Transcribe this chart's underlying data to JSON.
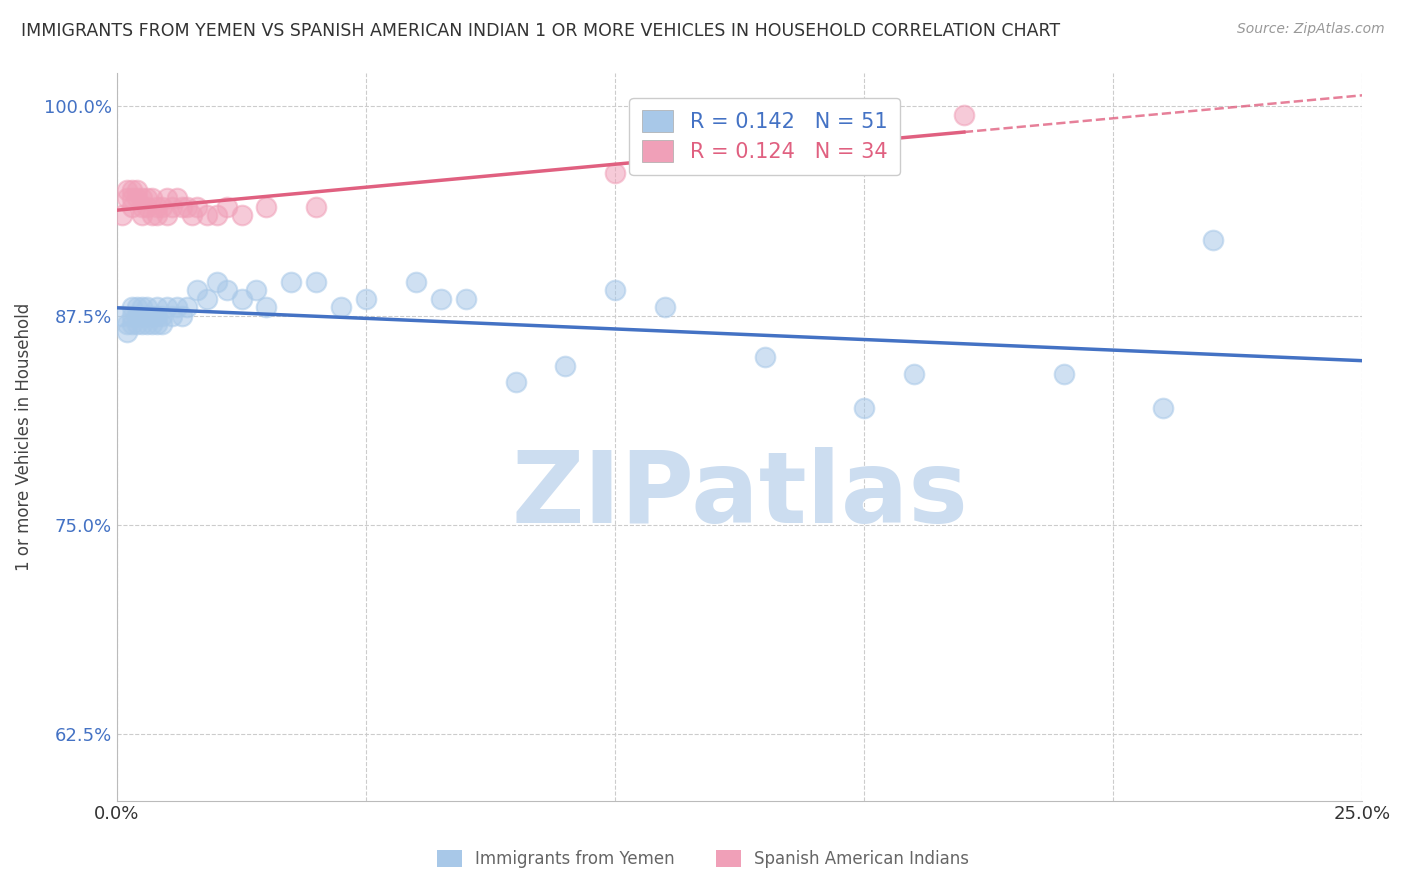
{
  "title": "IMMIGRANTS FROM YEMEN VS SPANISH AMERICAN INDIAN 1 OR MORE VEHICLES IN HOUSEHOLD CORRELATION CHART",
  "source": "Source: ZipAtlas.com",
  "ylabel": "1 or more Vehicles in Household",
  "xlabel_blue": "Immigrants from Yemen",
  "xlabel_pink": "Spanish American Indians",
  "xlim": [
    0.0,
    0.25
  ],
  "ylim": [
    0.585,
    1.02
  ],
  "xticks": [
    0.0,
    0.05,
    0.1,
    0.15,
    0.2,
    0.25
  ],
  "xtick_labels": [
    "0.0%",
    "",
    "",
    "",
    "",
    "25.0%"
  ],
  "yticks": [
    0.625,
    0.75,
    0.875,
    1.0
  ],
  "ytick_labels": [
    "62.5%",
    "75.0%",
    "87.5%",
    "100.0%"
  ],
  "blue_R": 0.142,
  "blue_N": 51,
  "pink_R": 0.124,
  "pink_N": 34,
  "blue_color": "#a8c8e8",
  "pink_color": "#f0a0b8",
  "blue_line_color": "#4472c4",
  "pink_line_color": "#e06080",
  "background_color": "#ffffff",
  "watermark_text": "ZIPatlas",
  "watermark_color": "#ccddf0",
  "blue_x": [
    0.001,
    0.002,
    0.002,
    0.003,
    0.003,
    0.003,
    0.004,
    0.004,
    0.004,
    0.005,
    0.005,
    0.005,
    0.006,
    0.006,
    0.006,
    0.007,
    0.007,
    0.008,
    0.008,
    0.008,
    0.009,
    0.009,
    0.01,
    0.011,
    0.012,
    0.013,
    0.014,
    0.016,
    0.018,
    0.02,
    0.022,
    0.025,
    0.028,
    0.03,
    0.035,
    0.04,
    0.045,
    0.05,
    0.06,
    0.065,
    0.07,
    0.08,
    0.09,
    0.1,
    0.11,
    0.13,
    0.15,
    0.16,
    0.19,
    0.21,
    0.22
  ],
  "blue_y": [
    0.875,
    0.87,
    0.865,
    0.87,
    0.875,
    0.88,
    0.875,
    0.87,
    0.88,
    0.87,
    0.875,
    0.88,
    0.875,
    0.87,
    0.88,
    0.875,
    0.87,
    0.875,
    0.88,
    0.87,
    0.875,
    0.87,
    0.88,
    0.875,
    0.88,
    0.875,
    0.88,
    0.89,
    0.885,
    0.895,
    0.89,
    0.885,
    0.89,
    0.88,
    0.895,
    0.895,
    0.88,
    0.885,
    0.895,
    0.885,
    0.885,
    0.835,
    0.845,
    0.89,
    0.88,
    0.85,
    0.82,
    0.84,
    0.84,
    0.82,
    0.92
  ],
  "pink_x": [
    0.001,
    0.002,
    0.002,
    0.003,
    0.003,
    0.003,
    0.004,
    0.004,
    0.005,
    0.005,
    0.005,
    0.006,
    0.006,
    0.007,
    0.007,
    0.008,
    0.008,
    0.009,
    0.01,
    0.01,
    0.011,
    0.012,
    0.013,
    0.014,
    0.015,
    0.016,
    0.018,
    0.02,
    0.022,
    0.025,
    0.03,
    0.04,
    0.1,
    0.17
  ],
  "pink_y": [
    0.935,
    0.95,
    0.945,
    0.95,
    0.945,
    0.94,
    0.95,
    0.945,
    0.945,
    0.935,
    0.94,
    0.945,
    0.94,
    0.945,
    0.935,
    0.94,
    0.935,
    0.94,
    0.945,
    0.935,
    0.94,
    0.945,
    0.94,
    0.94,
    0.935,
    0.94,
    0.935,
    0.935,
    0.94,
    0.935,
    0.94,
    0.94,
    0.96,
    0.995
  ]
}
